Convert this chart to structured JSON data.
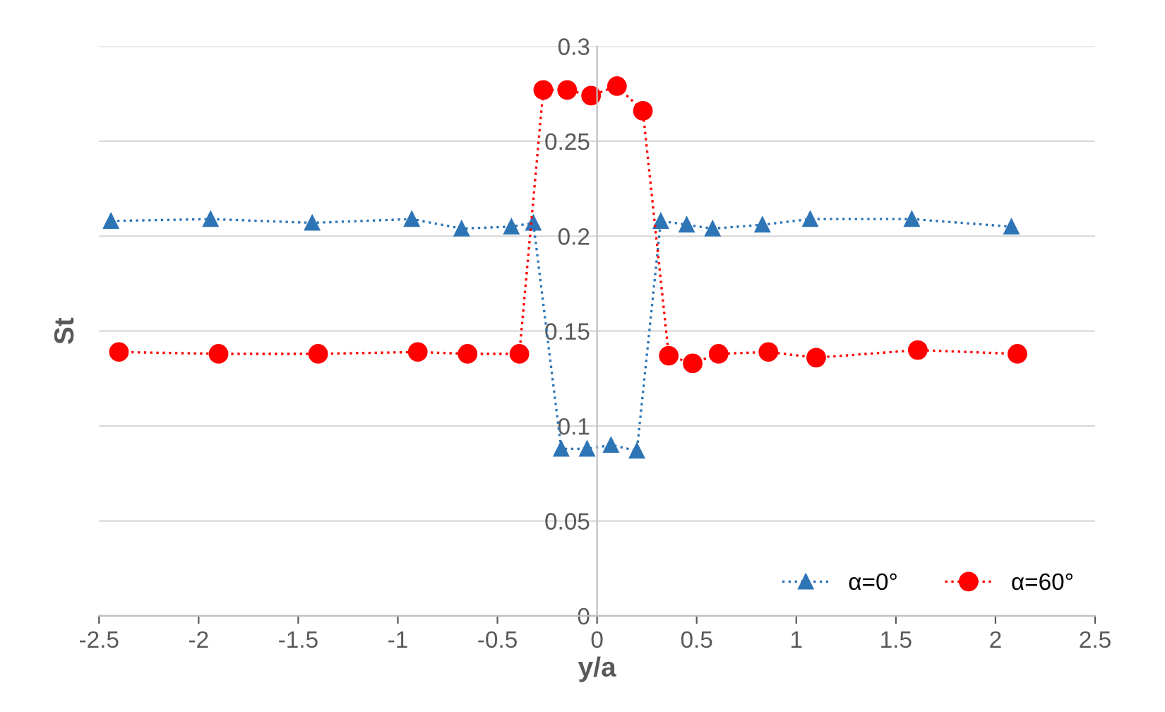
{
  "chart_data": {
    "type": "line",
    "xlabel": "y/a",
    "ylabel": "St",
    "xlim": [
      -2.5,
      2.5
    ],
    "xticks": [
      -2.5,
      -2,
      -1.5,
      -1,
      -0.5,
      0,
      0.5,
      1,
      1.5,
      2,
      2.5
    ],
    "ylim": [
      0,
      0.3
    ],
    "yticks": [
      0,
      0.05,
      0.1,
      0.15,
      0.2,
      0.25,
      0.3
    ],
    "grid": "y",
    "legend": "bottom right",
    "line_style": "dotted",
    "series": [
      {
        "name": "α=0°",
        "color": "#2e75b6",
        "marker": "triangle",
        "x": [
          -2.44,
          -1.94,
          -1.43,
          -0.93,
          -0.68,
          -0.43,
          -0.32,
          -0.18,
          -0.05,
          0.07,
          0.2,
          0.32,
          0.45,
          0.58,
          0.83,
          1.07,
          1.58,
          2.08
        ],
        "values": [
          0.208,
          0.209,
          0.207,
          0.209,
          0.204,
          0.205,
          0.207,
          0.088,
          0.088,
          0.09,
          0.087,
          0.208,
          0.206,
          0.204,
          0.206,
          0.209,
          0.209,
          0.205
        ]
      },
      {
        "name": "α=60°",
        "color": "#ff0000",
        "marker": "circle",
        "x": [
          -2.4,
          -1.9,
          -1.4,
          -0.9,
          -0.65,
          -0.39,
          -0.27,
          -0.15,
          -0.03,
          0.1,
          0.23,
          0.36,
          0.48,
          0.61,
          0.86,
          1.1,
          1.61,
          2.11
        ],
        "values": [
          0.139,
          0.138,
          0.138,
          0.139,
          0.138,
          0.138,
          0.277,
          0.277,
          0.274,
          0.279,
          0.266,
          0.137,
          0.133,
          0.138,
          0.139,
          0.136,
          0.14,
          0.138
        ]
      }
    ]
  }
}
